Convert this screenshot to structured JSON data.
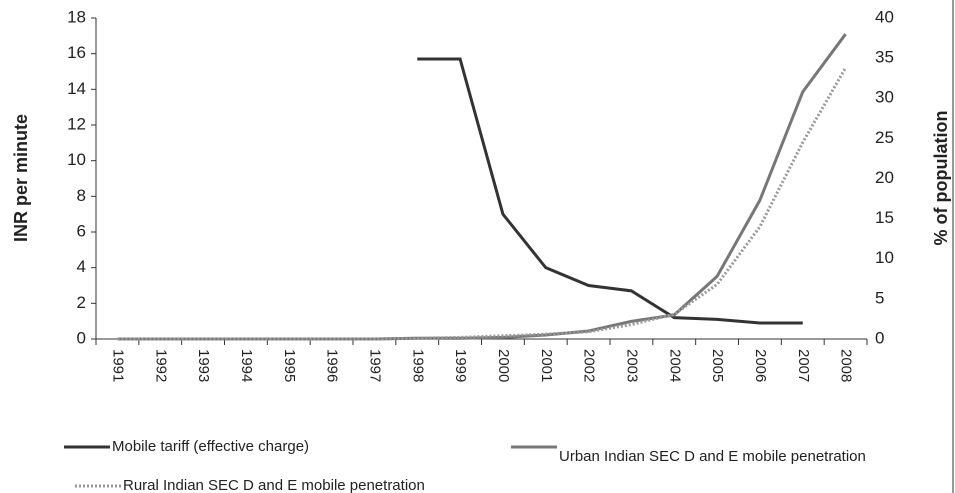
{
  "chart_data": {
    "type": "line",
    "y_label": "INR per minute",
    "y2_label": "% of population",
    "categories": [
      "1991",
      "1992",
      "1993",
      "1994",
      "1995",
      "1996",
      "1997",
      "1998",
      "1999",
      "2000",
      "2001",
      "2002",
      "2003",
      "2004",
      "2005",
      "2006",
      "2007",
      "2008"
    ],
    "series": [
      {
        "name": "Mobile tariff (effective charge)",
        "color": "#333333",
        "axis": "y",
        "dash": "solid",
        "values": [
          null,
          null,
          null,
          null,
          null,
          null,
          null,
          15.7,
          15.7,
          7,
          4,
          3,
          2.7,
          1.2,
          1.1,
          0.9,
          0.9,
          null
        ]
      },
      {
        "name": "Urban Indian SEC D and E mobile penetration",
        "color": "#777777",
        "axis": "y2",
        "dash": "solid",
        "values": [
          0,
          0,
          0,
          0,
          0,
          0,
          0,
          0.1,
          0.1,
          0.2,
          0.5,
          1,
          2.2,
          3,
          7.8,
          17.3,
          30.8,
          38
        ]
      },
      {
        "name": "Rural Indian SEC D and E mobile penetration",
        "color": "#999999",
        "axis": "y2",
        "dash": "dotted",
        "values": [
          0,
          0,
          0,
          0,
          0,
          0,
          0,
          0.1,
          0.2,
          0.4,
          0.6,
          0.9,
          1.8,
          3.1,
          6.8,
          14,
          24.5,
          33.8
        ]
      }
    ],
    "ylim": [
      0,
      18
    ],
    "yticks": [
      0,
      2,
      4,
      6,
      8,
      10,
      12,
      14,
      16,
      18
    ],
    "y2lim": [
      0,
      40
    ],
    "y2ticks": [
      0,
      5,
      10,
      15,
      20,
      25,
      30,
      35,
      40
    ]
  }
}
